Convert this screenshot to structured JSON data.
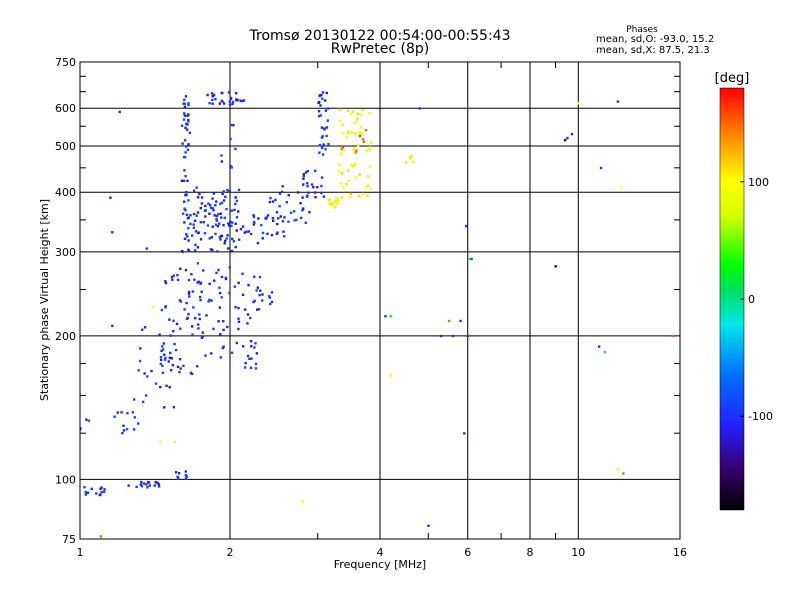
{
  "chart_data": {
    "type": "scatter",
    "title": "Tromsø 20130122 00:54:00-00:55:43",
    "subtitle": "RwPretec (8p)",
    "xlabel": "Frequency [MHz]",
    "ylabel": "Stationary phase Virtual Height [km]",
    "x_scale": "log",
    "y_scale": "log",
    "xlim": [
      1,
      16
    ],
    "ylim": [
      75,
      750
    ],
    "x_ticks": [
      1,
      2,
      4,
      6,
      8,
      10,
      16
    ],
    "x_tick_labels": [
      "1",
      "2",
      "4",
      "6",
      "8",
      "10",
      "16"
    ],
    "x_minor_ticks": [
      3,
      5,
      7,
      9
    ],
    "y_ticks": [
      75,
      100,
      200,
      300,
      400,
      500,
      600,
      750
    ],
    "y_tick_labels": [
      "75",
      "100",
      "200",
      "300",
      "400",
      "500",
      "600",
      "750"
    ],
    "y_minor_ticks": [
      125,
      150,
      175,
      250,
      350,
      450,
      550,
      650,
      700
    ],
    "grid": true,
    "stats": {
      "heading": "Phases",
      "line1": "mean, sd,O:  -93.0,  15.2",
      "line2": "mean, sd,X:   87.5,  21.3"
    },
    "colorbar": {
      "label": "[deg]",
      "range": [
        -180,
        180
      ],
      "ticks": [
        -100,
        0,
        100
      ],
      "tick_labels": [
        "-100",
        "0",
        "100"
      ]
    },
    "series": [
      {
        "color_value": -100,
        "clusters": [
          {
            "f": [
              1.0,
              1.12
            ],
            "h": [
              92,
              97
            ],
            "n": 14
          },
          {
            "f": [
              1.25,
              1.45
            ],
            "h": [
              96,
              100
            ],
            "n": 16
          },
          {
            "f": [
              1.55,
              1.65
            ],
            "h": [
              98,
              104
            ],
            "n": 8
          },
          {
            "f": [
              1.0,
              1.05
            ],
            "h": [
              125,
              135
            ],
            "n": 4
          },
          {
            "f": [
              1.15,
              1.35
            ],
            "h": [
              125,
              145
            ],
            "n": 12
          },
          {
            "f": [
              1.25,
              1.55
            ],
            "h": [
              140,
              210
            ],
            "n": 24
          },
          {
            "f": [
              1.45,
              1.75
            ],
            "h": [
              165,
              290
            ],
            "n": 70
          },
          {
            "f": [
              1.75,
              2.3
            ],
            "h": [
              170,
              280
            ],
            "n": 70
          },
          {
            "f": [
              2.25,
              2.45
            ],
            "h": [
              225,
              255
            ],
            "n": 10
          },
          {
            "f": [
              1.6,
              2.1
            ],
            "h": [
              300,
              410
            ],
            "n": 120
          },
          {
            "f": [
              2.1,
              2.6
            ],
            "h": [
              310,
              360
            ],
            "n": 30
          },
          {
            "f": [
              2.4,
              2.9
            ],
            "h": [
              345,
              420
            ],
            "n": 30
          },
          {
            "f": [
              2.8,
              3.1
            ],
            "h": [
              390,
              450
            ],
            "n": 20
          },
          {
            "f": [
              3.0,
              3.15
            ],
            "h": [
              480,
              650
            ],
            "n": 30
          },
          {
            "f": [
              1.6,
              1.66
            ],
            "h": [
              420,
              640
            ],
            "n": 35
          },
          {
            "f": [
              1.8,
              2.15
            ],
            "h": [
              610,
              650
            ],
            "n": 30
          },
          {
            "f": [
              1.9,
              2.05
            ],
            "h": [
              450,
              560
            ],
            "n": 8
          }
        ],
        "points": [
          [
            1.16,
            210
          ],
          [
            1.15,
            390
          ],
          [
            1.16,
            330
          ],
          [
            1.2,
            590
          ],
          [
            1.36,
            305
          ],
          [
            4.1,
            220
          ],
          [
            4.8,
            600
          ],
          [
            5.0,
            80
          ],
          [
            5.3,
            200
          ],
          [
            5.6,
            200
          ],
          [
            5.9,
            125
          ],
          [
            5.95,
            340
          ],
          [
            6.0,
            200
          ],
          [
            6.1,
            290
          ],
          [
            9.5,
            520
          ],
          [
            9.7,
            530
          ],
          [
            11.0,
            190
          ],
          [
            11.1,
            450
          ],
          [
            12.0,
            620
          ],
          [
            5.8,
            215
          ]
        ]
      },
      {
        "color_value": 25,
        "clusters": [],
        "points": [
          [
            4.2,
            220
          ],
          [
            11.3,
            185
          ],
          [
            6.05,
            290
          ]
        ]
      },
      {
        "color_value": 100,
        "clusters": [
          {
            "f": [
              3.15,
              3.3
            ],
            "h": [
              370,
              390
            ],
            "n": 14
          },
          {
            "f": [
              3.3,
              3.85
            ],
            "h": [
              390,
              600
            ],
            "n": 60
          },
          {
            "f": [
              4.5,
              4.7
            ],
            "h": [
              460,
              480
            ],
            "n": 5
          }
        ],
        "points": [
          [
            1.4,
            230
          ],
          [
            1.45,
            120
          ],
          [
            1.55,
            120
          ],
          [
            2.8,
            90
          ],
          [
            4.2,
            165
          ],
          [
            10.0,
            615
          ],
          [
            12.0,
            105
          ],
          [
            12.2,
            410
          ]
        ]
      },
      {
        "color_value": 150,
        "clusters": [
          {
            "f": [
              3.3,
              3.8
            ],
            "h": [
              470,
              560
            ],
            "n": 8
          }
        ],
        "points": [
          [
            5.5,
            215
          ],
          [
            12.3,
            103
          ],
          [
            15.5,
            200
          ],
          [
            1.1,
            76
          ]
        ]
      },
      {
        "color_value": -150,
        "clusters": [],
        "points": [
          [
            9.0,
            280
          ],
          [
            9.4,
            515
          ]
        ]
      }
    ]
  }
}
